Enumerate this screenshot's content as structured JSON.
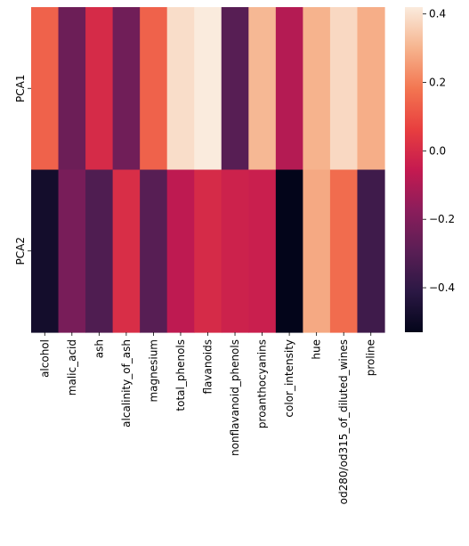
{
  "chart_data": {
    "type": "heatmap",
    "rows": [
      "PCA1",
      "PCA2"
    ],
    "columns": [
      "alcohol",
      "malic_acid",
      "ash",
      "alcalinity_of_ash",
      "magnesium",
      "total_phenols",
      "flavanoids",
      "nonflavanoid_phenols",
      "proanthocyanins",
      "color_intensity",
      "hue",
      "od280/od315_of_diluted_wines",
      "proline"
    ],
    "values": [
      [
        0.14,
        -0.25,
        0.0,
        -0.24,
        0.14,
        0.39,
        0.42,
        -0.3,
        0.31,
        -0.09,
        0.3,
        0.38,
        0.29
      ],
      [
        -0.48,
        -0.22,
        -0.32,
        0.01,
        -0.3,
        -0.07,
        0.0,
        -0.03,
        -0.04,
        -0.53,
        0.28,
        0.16,
        -0.36
      ]
    ],
    "vmin": -0.53,
    "vmax": 0.42,
    "colormap": "rocket",
    "colorbar": {
      "ticks": [
        -0.4,
        -0.2,
        0.0,
        0.2,
        0.4
      ],
      "tick_labels": [
        "−0.4",
        "−0.2",
        "0.0",
        "0.2",
        "0.4"
      ]
    }
  }
}
